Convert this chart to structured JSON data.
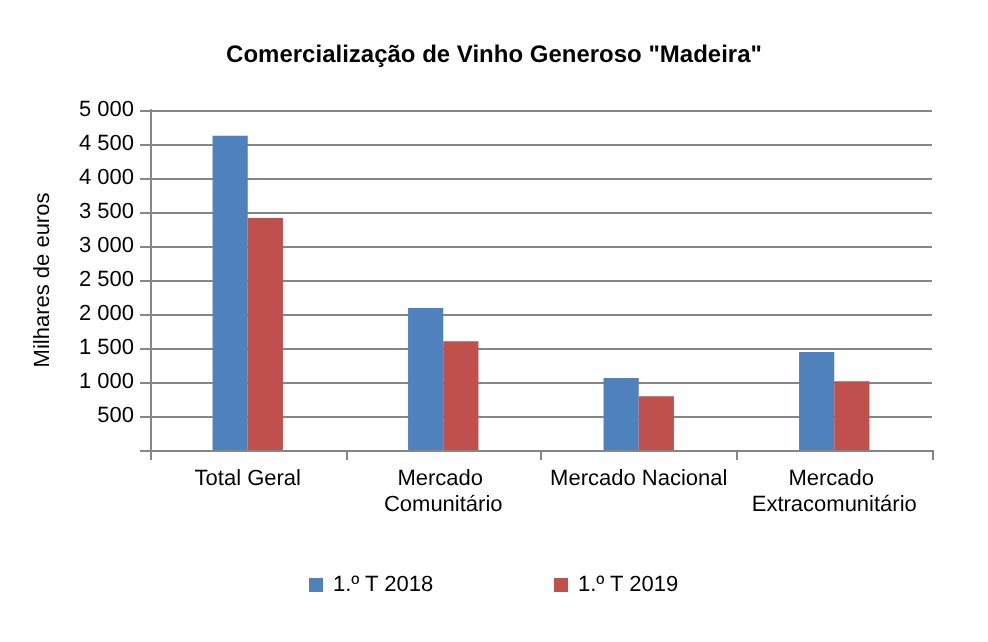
{
  "chart_data": {
    "type": "bar",
    "title": "Comercialização de Vinho Generoso \"Madeira\"",
    "ylabel": "Milhares de euros",
    "categories": [
      "Total Geral",
      "Mercado Comunitário",
      "Mercado Nacional",
      "Mercado Extracomunitário"
    ],
    "series": [
      {
        "name": "1.º T 2018",
        "color": "#4f81bd",
        "values": [
          4620,
          2090,
          1060,
          1440
        ]
      },
      {
        "name": "1.º T 2019",
        "color": "#c0504d",
        "values": [
          3410,
          1600,
          790,
          1010
        ]
      }
    ],
    "ylim": [
      0,
      5000
    ],
    "yticks": [
      {
        "value": 0,
        "label": null
      },
      {
        "value": 500,
        "label": "500"
      },
      {
        "value": 1000,
        "label": "1 000"
      },
      {
        "value": 1500,
        "label": "1 500"
      },
      {
        "value": 2000,
        "label": "2 000"
      },
      {
        "value": 2500,
        "label": "2 500"
      },
      {
        "value": 3000,
        "label": "3 000"
      },
      {
        "value": 3500,
        "label": "3 500"
      },
      {
        "value": 4000,
        "label": "4 000"
      },
      {
        "value": 4500,
        "label": "4 500"
      },
      {
        "value": 5000,
        "label": "5 000"
      }
    ],
    "grid": "y",
    "legend": "bottom"
  }
}
